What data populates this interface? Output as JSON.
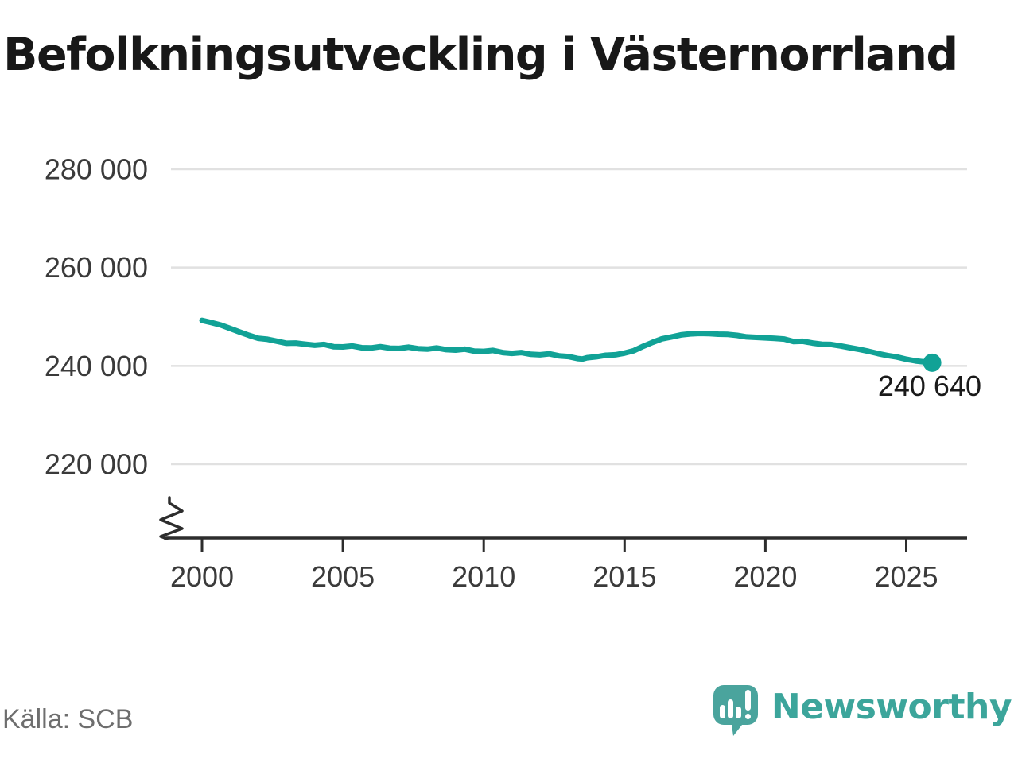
{
  "header": {
    "title": "Befolkningsutveckling i Västernorrland"
  },
  "footer": {
    "source": "Källa: SCB",
    "brand": "Newsworthy"
  },
  "colors": {
    "line": "#11a296",
    "grid": "#e1e1e1",
    "axis": "#2d2d2d",
    "tick_label": "#3a3a3a",
    "annotation": "#1a1a1a",
    "brand_mark": "#4aa49d",
    "brand_text": "#3ca59b",
    "source_text": "#6e6e6e"
  },
  "chart_data": {
    "type": "line",
    "title": "Befolkningsutveckling i Västernorrland",
    "xlabel": "",
    "ylabel": "",
    "x_ticks": [
      2000,
      2005,
      2010,
      2015,
      2020,
      2025
    ],
    "y_ticks": [
      {
        "value": 220000,
        "label": "220 000"
      },
      {
        "value": 240000,
        "label": "240 000"
      },
      {
        "value": 260000,
        "label": "260 000"
      },
      {
        "value": 280000,
        "label": "280 000"
      }
    ],
    "ylim_visible": [
      220000,
      280000
    ],
    "y_axis_break": true,
    "grid": "horizontal",
    "end_label": "240 640",
    "end_value": 240640,
    "series": [
      {
        "name": "Befolkning i Västernorrland",
        "points": [
          [
            2000.0,
            249250
          ],
          [
            2000.33,
            248800
          ],
          [
            2000.67,
            248300
          ],
          [
            2001.0,
            247600
          ],
          [
            2001.33,
            246900
          ],
          [
            2001.67,
            246200
          ],
          [
            2002.0,
            245600
          ],
          [
            2002.33,
            245400
          ],
          [
            2002.67,
            245000
          ],
          [
            2003.0,
            244600
          ],
          [
            2003.33,
            244650
          ],
          [
            2003.67,
            244400
          ],
          [
            2004.0,
            244200
          ],
          [
            2004.33,
            244350
          ],
          [
            2004.67,
            243900
          ],
          [
            2005.0,
            243850
          ],
          [
            2005.33,
            244050
          ],
          [
            2005.67,
            243700
          ],
          [
            2006.0,
            243650
          ],
          [
            2006.33,
            243900
          ],
          [
            2006.67,
            243600
          ],
          [
            2007.0,
            243550
          ],
          [
            2007.33,
            243800
          ],
          [
            2007.67,
            243500
          ],
          [
            2008.0,
            243400
          ],
          [
            2008.33,
            243650
          ],
          [
            2008.67,
            243300
          ],
          [
            2009.0,
            243200
          ],
          [
            2009.33,
            243400
          ],
          [
            2009.67,
            243000
          ],
          [
            2010.0,
            242950
          ],
          [
            2010.33,
            243150
          ],
          [
            2010.67,
            242700
          ],
          [
            2011.0,
            242550
          ],
          [
            2011.33,
            242700
          ],
          [
            2011.67,
            242350
          ],
          [
            2012.0,
            242250
          ],
          [
            2012.33,
            242450
          ],
          [
            2012.67,
            242050
          ],
          [
            2013.0,
            241900
          ],
          [
            2013.33,
            241500
          ],
          [
            2013.5,
            241400
          ],
          [
            2013.67,
            241650
          ],
          [
            2014.0,
            241850
          ],
          [
            2014.33,
            242150
          ],
          [
            2014.67,
            242250
          ],
          [
            2015.0,
            242600
          ],
          [
            2015.33,
            243100
          ],
          [
            2015.67,
            244000
          ],
          [
            2016.0,
            244800
          ],
          [
            2016.33,
            245500
          ],
          [
            2016.67,
            245900
          ],
          [
            2017.0,
            246300
          ],
          [
            2017.33,
            246500
          ],
          [
            2017.67,
            246600
          ],
          [
            2018.0,
            246550
          ],
          [
            2018.33,
            246450
          ],
          [
            2018.67,
            246400
          ],
          [
            2019.0,
            246200
          ],
          [
            2019.33,
            245900
          ],
          [
            2019.67,
            245800
          ],
          [
            2020.0,
            245700
          ],
          [
            2020.33,
            245600
          ],
          [
            2020.67,
            245450
          ],
          [
            2021.0,
            244950
          ],
          [
            2021.33,
            245000
          ],
          [
            2021.67,
            244650
          ],
          [
            2022.0,
            244400
          ],
          [
            2022.33,
            244350
          ],
          [
            2022.67,
            244050
          ],
          [
            2023.0,
            243700
          ],
          [
            2023.33,
            243350
          ],
          [
            2023.67,
            242950
          ],
          [
            2024.0,
            242500
          ],
          [
            2024.33,
            242100
          ],
          [
            2024.67,
            241800
          ],
          [
            2025.0,
            241350
          ],
          [
            2025.33,
            241000
          ],
          [
            2025.67,
            240780
          ],
          [
            2025.92,
            240640
          ]
        ]
      }
    ]
  }
}
